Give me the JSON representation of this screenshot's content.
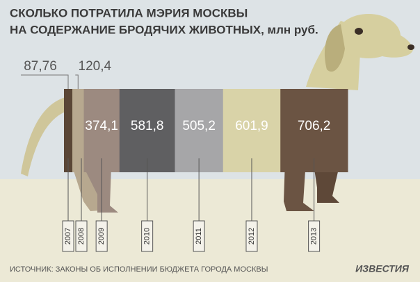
{
  "chart_data": {
    "type": "bar",
    "title": "СКОЛЬКО ПОТРАТИЛА МЭРИЯ МОСКВЫ",
    "subtitle": "НА СОДЕРЖАНИЕ БРОДЯЧИХ ЖИВОТНЫХ, млн руб.",
    "categories": [
      "2007",
      "2008",
      "2009",
      "2010",
      "2011",
      "2012",
      "2013"
    ],
    "values": [
      87.76,
      120.4,
      374.1,
      581.8,
      505.2,
      601.9,
      706.2
    ],
    "value_labels": [
      "87,76",
      "120,4",
      "374,1",
      "581,8",
      "505,2",
      "601,9",
      "706,2"
    ],
    "colors": [
      "#5a4636",
      "#b7a88f",
      "#9c8a80",
      "#5f5f61",
      "#a6a6a8",
      "#d9d3a8",
      "#6b5443"
    ],
    "source": "ИСТОЧНИК:  ЗАКОНЫ ОБ ИСПОЛНЕНИИ БЮДЖЕТА ГОРОДА МОСКВЫ",
    "logo": "ИЗВЕСТИЯ"
  }
}
